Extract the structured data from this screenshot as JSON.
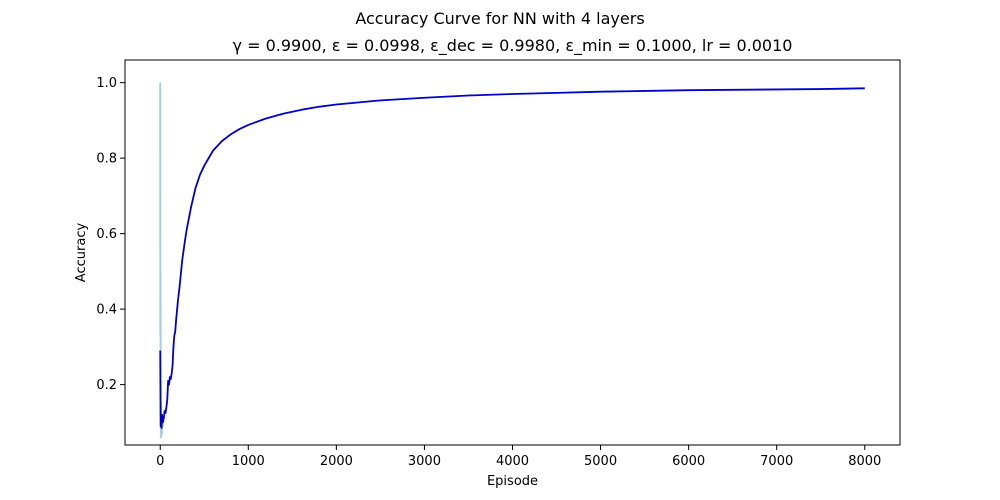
{
  "chart_data": {
    "type": "line",
    "title": "Accuracy Curve for NN with 4 layers",
    "subtitle": "γ = 0.9900, ε = 0.0998, ε_dec = 0.9980, ε_min = 0.1000, lr = 0.0010",
    "xlabel": "Episode",
    "ylabel": "Accuracy",
    "xlim": [
      -400,
      8400
    ],
    "ylim": [
      0.04,
      1.06
    ],
    "xticks": [
      0,
      1000,
      2000,
      3000,
      4000,
      5000,
      6000,
      7000,
      8000
    ],
    "xtick_labels": [
      "0",
      "1000",
      "2000",
      "3000",
      "4000",
      "5000",
      "6000",
      "7000",
      "8000"
    ],
    "yticks": [
      0.2,
      0.4,
      0.6,
      0.8,
      1.0
    ],
    "ytick_labels": [
      "0.2",
      "0.4",
      "0.6",
      "0.8",
      "1.0"
    ],
    "grid": false,
    "series": [
      {
        "role": "raw",
        "color": "#a6cee3",
        "x": [
          0,
          1,
          2,
          3,
          4,
          5,
          6,
          8,
          10,
          12,
          15,
          18,
          20,
          25,
          30
        ],
        "y": [
          1.0,
          0.5,
          0.33,
          0.5,
          0.4,
          0.2,
          0.1,
          0.06,
          0.15,
          0.08,
          0.12,
          0.07,
          0.1,
          0.09,
          0.11
        ]
      },
      {
        "role": "smoothed",
        "color": "#0000cd",
        "x": [
          0,
          5,
          10,
          15,
          20,
          30,
          40,
          50,
          60,
          70,
          80,
          90,
          100,
          110,
          120,
          130,
          140,
          150,
          160,
          170,
          180,
          200,
          220,
          250,
          280,
          300,
          350,
          400,
          450,
          500,
          550,
          600,
          700,
          800,
          900,
          1000,
          1200,
          1400,
          1600,
          1800,
          2000,
          2500,
          3000,
          3500,
          4000,
          4500,
          5000,
          5500,
          6000,
          6500,
          7000,
          7500,
          8000
        ],
        "y": [
          0.29,
          0.09,
          0.11,
          0.085,
          0.12,
          0.1,
          0.11,
          0.13,
          0.125,
          0.14,
          0.16,
          0.21,
          0.2,
          0.22,
          0.215,
          0.23,
          0.25,
          0.3,
          0.33,
          0.34,
          0.37,
          0.42,
          0.46,
          0.53,
          0.58,
          0.61,
          0.67,
          0.72,
          0.755,
          0.78,
          0.8,
          0.82,
          0.845,
          0.863,
          0.877,
          0.888,
          0.905,
          0.918,
          0.928,
          0.936,
          0.942,
          0.953,
          0.96,
          0.966,
          0.97,
          0.973,
          0.976,
          0.978,
          0.98,
          0.981,
          0.982,
          0.983,
          0.985
        ]
      }
    ]
  }
}
